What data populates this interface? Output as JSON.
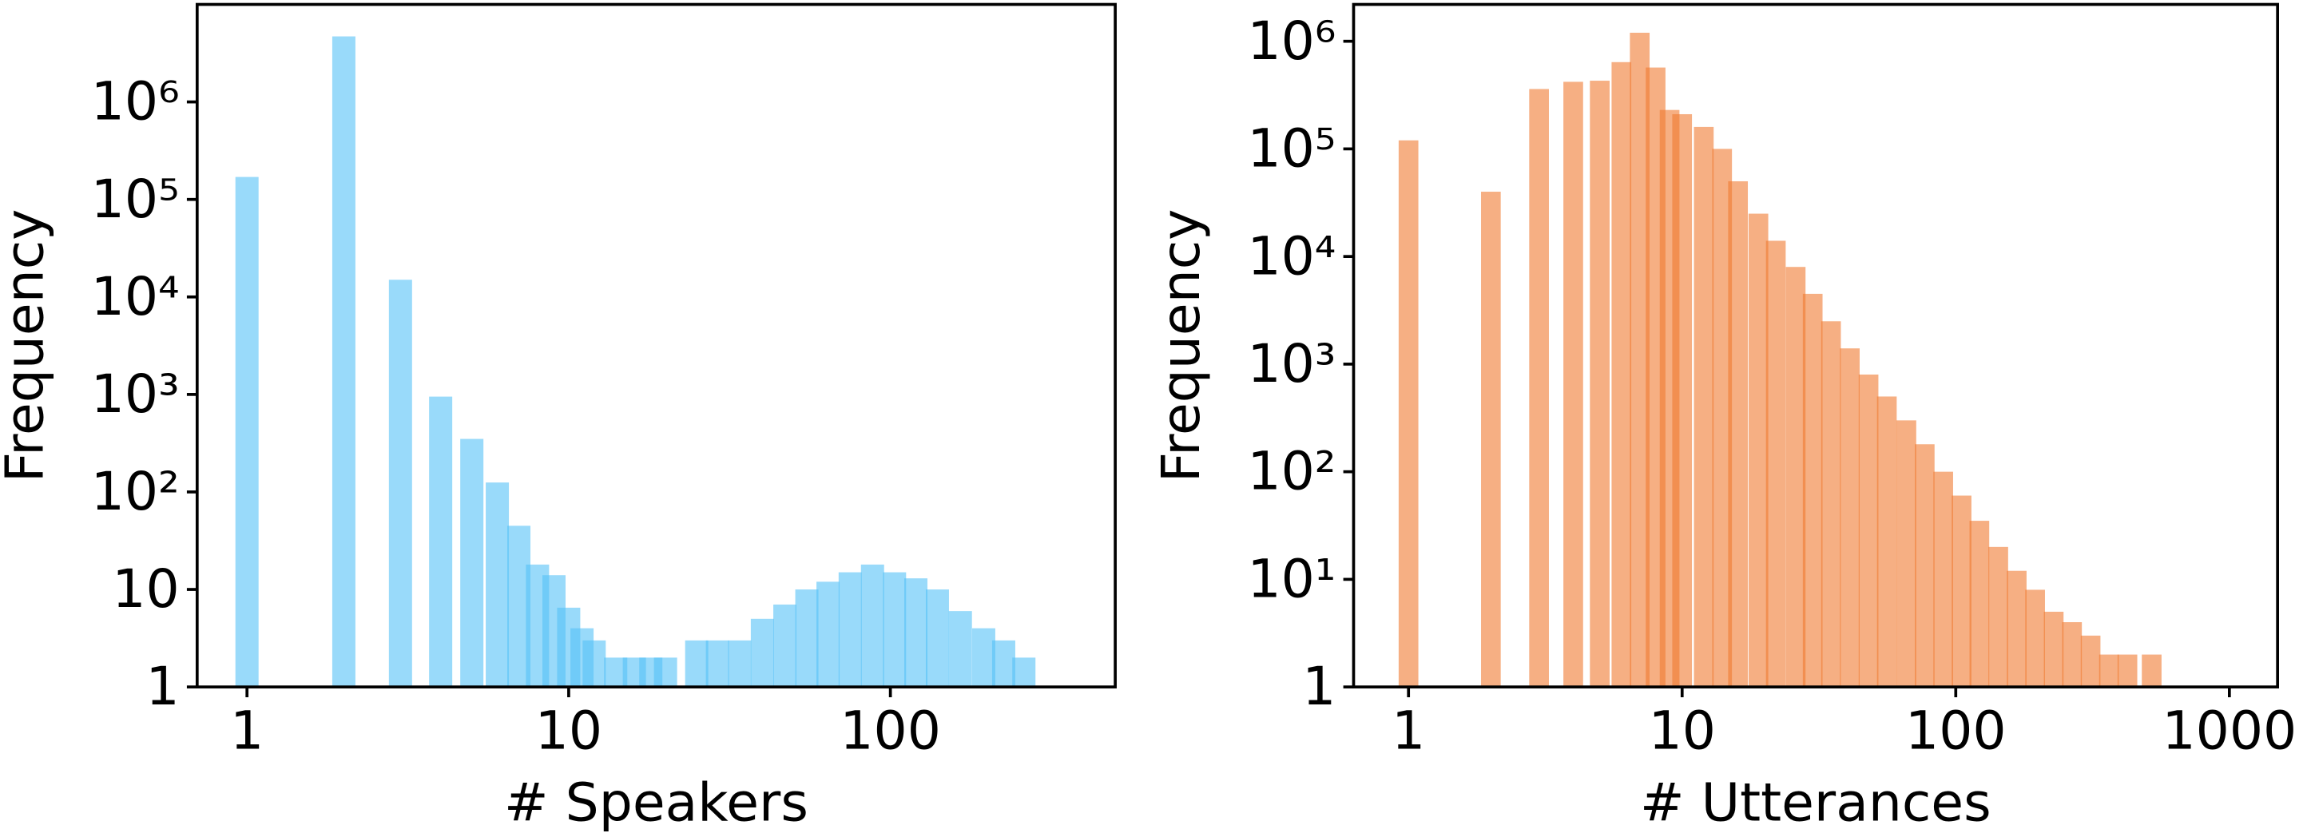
{
  "chart_data": [
    {
      "type": "bar",
      "xlabel": "# Speakers",
      "ylabel": "Frequency",
      "log_x": true,
      "log_y": true,
      "color": "#55c2f6",
      "x": [
        1,
        2,
        3,
        4,
        5,
        6,
        7,
        8,
        9,
        10,
        11,
        12,
        14,
        16,
        18,
        20,
        25,
        29,
        34,
        40,
        47,
        55,
        64,
        75,
        88,
        103,
        120,
        140,
        165,
        195,
        225,
        260
      ],
      "values": [
        170000,
        4700000,
        15000,
        950,
        350,
        125,
        45,
        18,
        14,
        6.5,
        4,
        3,
        2,
        2,
        2,
        2,
        3,
        3,
        3,
        5,
        7,
        10,
        12,
        15,
        18,
        15,
        13,
        10,
        6,
        4,
        3,
        2
      ],
      "xlim": [
        0.7,
        500
      ],
      "ylim": [
        1,
        10000000
      ],
      "xticks": [
        1,
        10,
        100
      ],
      "yticks": [
        1,
        10,
        {
          "value": 100,
          "label": "10²"
        },
        {
          "value": 1000,
          "label": "10³"
        },
        {
          "value": 10000,
          "label": "10⁴"
        },
        {
          "value": 100000,
          "label": "10⁵"
        },
        {
          "value": 1000000,
          "label": "10⁶"
        }
      ]
    },
    {
      "type": "bar",
      "xlabel": "# Utterances",
      "ylabel": "Frequency",
      "log_x": true,
      "log_y": true,
      "color": "#f07a30",
      "x": [
        1,
        2,
        3,
        4,
        5,
        6,
        7,
        8,
        9,
        10,
        12,
        14,
        16,
        19,
        22,
        26,
        30,
        35,
        41,
        48,
        56,
        66,
        77,
        90,
        105,
        122,
        143,
        167,
        195,
        228,
        266,
        311,
        363,
        424,
        520
      ],
      "values": [
        120000,
        40000,
        360000,
        420000,
        430000,
        640000,
        1200000,
        570000,
        230000,
        210000,
        160000,
        100000,
        50000,
        25000,
        14000,
        8000,
        4500,
        2500,
        1400,
        800,
        500,
        300,
        180,
        100,
        60,
        35,
        20,
        12,
        8,
        5,
        4,
        3,
        2,
        2,
        2
      ],
      "xlim": [
        0.63,
        1500
      ],
      "ylim": [
        1,
        2200000
      ],
      "xticks": [
        1,
        10,
        100,
        1000
      ],
      "yticks": [
        1,
        {
          "value": 10,
          "label": "10¹"
        },
        {
          "value": 100,
          "label": "10²"
        },
        {
          "value": 1000,
          "label": "10³"
        },
        {
          "value": 10000,
          "label": "10⁴"
        },
        {
          "value": 100000,
          "label": "10⁵"
        },
        {
          "value": 1000000,
          "label": "10⁶"
        }
      ]
    }
  ]
}
